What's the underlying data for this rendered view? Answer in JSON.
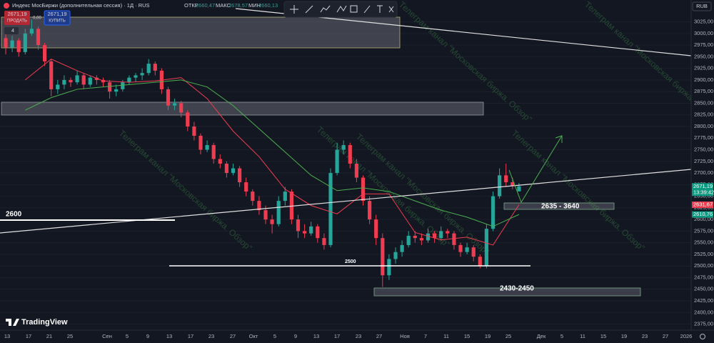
{
  "header": {
    "symbol": "Индекс МосБиржи (дополнительная сессия) · 1Д · RUS",
    "open_label": "ОТКР",
    "open": "2660,47",
    "high_label": "МАКС",
    "high": "2678,57",
    "low_label": "МИН",
    "low": "2660,13",
    "sell_price": "2671,19",
    "sell": "ПРОДАТЬ",
    "spread": "0,00",
    "buy_price": "2671,19",
    "buy": "КУПИТЬ",
    "layers": "4",
    "currency": "RUB",
    "logo": "TradingView"
  },
  "watermark": "Телеграм канал \"Московская биржа. Обзор\"",
  "annotations": {
    "level_2600": "2600",
    "level_2500": "2500",
    "zone_top": "2635 - 3640",
    "zone_bottom": "2430-2450"
  },
  "chart_data": {
    "type": "candlestick",
    "up_color": "#26a69a",
    "down_color": "#ef3c50",
    "grid": true,
    "ylim": [
      2362,
      3072
    ],
    "yticks": [
      {
        "value": 2375,
        "label": "2375,00"
      },
      {
        "value": 2400,
        "label": "2400,00"
      },
      {
        "value": 2425,
        "label": "2425,00"
      },
      {
        "value": 2450,
        "label": "2450,00"
      },
      {
        "value": 2475,
        "label": "2475,00"
      },
      {
        "value": 2500,
        "label": "2500,00"
      },
      {
        "value": 2525,
        "label": "2525,00"
      },
      {
        "value": 2550,
        "label": "2550,00"
      },
      {
        "value": 2575,
        "label": "2575,00"
      },
      {
        "value": 2600,
        "label": "2600,00"
      },
      {
        "value": 2625,
        "label": "2625,00"
      },
      {
        "value": 2650,
        "label": "2650,00"
      },
      {
        "value": 2675,
        "label": "2675,00"
      },
      {
        "value": 2700,
        "label": "2700,00"
      },
      {
        "value": 2725,
        "label": "2725,00"
      },
      {
        "value": 2750,
        "label": "2750,00"
      },
      {
        "value": 2775,
        "label": "2775,00"
      },
      {
        "value": 2800,
        "label": "2800,00"
      },
      {
        "value": 2825,
        "label": "2825,00"
      },
      {
        "value": 2850,
        "label": "2850,00"
      },
      {
        "value": 2875,
        "label": "2875,00"
      },
      {
        "value": 2900,
        "label": "2900,00"
      },
      {
        "value": 2925,
        "label": "2925,00"
      },
      {
        "value": 2950,
        "label": "2950,00"
      },
      {
        "value": 2975,
        "label": "2975,00"
      },
      {
        "value": 3000,
        "label": "3000,00"
      },
      {
        "value": 3025,
        "label": "3025,00"
      }
    ],
    "xlabels": [
      "13",
      "17",
      "21",
      "25",
      "Сен",
      "5",
      "9",
      "13",
      "17",
      "23",
      "27",
      "Окт",
      "5",
      "9",
      "13",
      "17",
      "23",
      "27",
      "Ноя",
      "7",
      "11",
      "15",
      "19",
      "25",
      "Дек",
      "5",
      "11",
      "15",
      "19",
      "23",
      "27",
      "2026"
    ],
    "candles": [
      [
        2990,
        3000,
        2955,
        2970
      ],
      [
        2970,
        2995,
        2960,
        2985
      ],
      [
        2985,
        2990,
        2950,
        2960
      ],
      [
        2960,
        3010,
        2955,
        3000
      ],
      [
        3000,
        3030,
        2995,
        3010
      ],
      [
        3010,
        3015,
        2965,
        2975
      ],
      [
        2975,
        2980,
        2930,
        2940
      ],
      [
        2940,
        2945,
        2865,
        2880
      ],
      [
        2880,
        2900,
        2870,
        2890
      ],
      [
        2890,
        2910,
        2880,
        2900
      ],
      [
        2900,
        2905,
        2885,
        2895
      ],
      [
        2895,
        2920,
        2890,
        2910
      ],
      [
        2910,
        2915,
        2880,
        2890
      ],
      [
        2890,
        2910,
        2885,
        2905
      ],
      [
        2905,
        2910,
        2890,
        2900
      ],
      [
        2900,
        2905,
        2885,
        2895
      ],
      [
        2895,
        2900,
        2860,
        2875
      ],
      [
        2875,
        2890,
        2865,
        2880
      ],
      [
        2880,
        2900,
        2875,
        2895
      ],
      [
        2895,
        2910,
        2890,
        2905
      ],
      [
        2905,
        2915,
        2895,
        2910
      ],
      [
        2910,
        2925,
        2900,
        2915
      ],
      [
        2915,
        2945,
        2910,
        2935
      ],
      [
        2935,
        2940,
        2910,
        2920
      ],
      [
        2920,
        2925,
        2870,
        2880
      ],
      [
        2880,
        2885,
        2835,
        2845
      ],
      [
        2845,
        2860,
        2835,
        2850
      ],
      [
        2850,
        2855,
        2820,
        2830
      ],
      [
        2830,
        2835,
        2790,
        2800
      ],
      [
        2800,
        2810,
        2770,
        2780
      ],
      [
        2780,
        2785,
        2740,
        2750
      ],
      [
        2750,
        2770,
        2745,
        2760
      ],
      [
        2760,
        2765,
        2720,
        2730
      ],
      [
        2730,
        2740,
        2710,
        2720
      ],
      [
        2720,
        2725,
        2690,
        2700
      ],
      [
        2700,
        2720,
        2695,
        2710
      ],
      [
        2710,
        2715,
        2670,
        2680
      ],
      [
        2680,
        2690,
        2650,
        2660
      ],
      [
        2660,
        2665,
        2630,
        2640
      ],
      [
        2640,
        2650,
        2610,
        2620
      ],
      [
        2620,
        2630,
        2590,
        2600
      ],
      [
        2600,
        2610,
        2570,
        2590
      ],
      [
        2590,
        2650,
        2585,
        2640
      ],
      [
        2640,
        2670,
        2630,
        2660
      ],
      [
        2660,
        2665,
        2590,
        2600
      ],
      [
        2600,
        2610,
        2560,
        2575
      ],
      [
        2575,
        2590,
        2560,
        2570
      ],
      [
        2570,
        2595,
        2565,
        2585
      ],
      [
        2585,
        2590,
        2550,
        2560
      ],
      [
        2560,
        2570,
        2535,
        2545
      ],
      [
        2545,
        2710,
        2540,
        2700
      ],
      [
        2700,
        2765,
        2695,
        2750
      ],
      [
        2750,
        2770,
        2740,
        2760
      ],
      [
        2760,
        2765,
        2710,
        2720
      ],
      [
        2720,
        2730,
        2680,
        2690
      ],
      [
        2690,
        2695,
        2630,
        2640
      ],
      [
        2640,
        2650,
        2590,
        2600
      ],
      [
        2600,
        2610,
        2545,
        2560
      ],
      [
        2560,
        2570,
        2455,
        2480
      ],
      [
        2480,
        2525,
        2470,
        2515
      ],
      [
        2515,
        2540,
        2505,
        2530
      ],
      [
        2530,
        2555,
        2520,
        2545
      ],
      [
        2545,
        2575,
        2540,
        2565
      ],
      [
        2565,
        2575,
        2550,
        2560
      ],
      [
        2560,
        2570,
        2545,
        2555
      ],
      [
        2555,
        2580,
        2550,
        2570
      ],
      [
        2570,
        2575,
        2550,
        2560
      ],
      [
        2560,
        2585,
        2555,
        2575
      ],
      [
        2575,
        2580,
        2560,
        2570
      ],
      [
        2570,
        2575,
        2535,
        2545
      ],
      [
        2545,
        2550,
        2520,
        2530
      ],
      [
        2530,
        2550,
        2525,
        2540
      ],
      [
        2540,
        2545,
        2510,
        2520
      ],
      [
        2520,
        2525,
        2495,
        2500
      ],
      [
        2500,
        2590,
        2495,
        2580
      ],
      [
        2580,
        2660,
        2575,
        2650
      ],
      [
        2650,
        2710,
        2645,
        2695
      ],
      [
        2695,
        2720,
        2670,
        2680
      ],
      [
        2680,
        2690,
        2665,
        2672
      ],
      [
        2660.47,
        2678.57,
        2660.13,
        2671.19
      ]
    ],
    "series": [
      {
        "color": "#ef3c50",
        "values": [
          2900,
          2945,
          2920,
          2898,
          2895,
          2898,
          2905,
          2860,
          2790,
          2735,
          2665,
          2630,
          2612,
          2655,
          2655,
          2572,
          2556,
          2562,
          2545,
          2631.67
        ]
      },
      {
        "color": "#4caf50",
        "values": [
          2835,
          2862,
          2880,
          2885,
          2890,
          2895,
          2900,
          2885,
          2845,
          2795,
          2745,
          2695,
          2662,
          2668,
          2660,
          2640,
          2620,
          2605,
          2585,
          2610.76
        ]
      }
    ],
    "price_tags": [
      {
        "value": 2671.19,
        "label": "2671,19",
        "color": "#089981",
        "time": "13:39:42"
      },
      {
        "value": 2631.67,
        "label": "2631,67",
        "color": "#ef3c50"
      },
      {
        "value": 2610.76,
        "label": "2610,76",
        "color": "#089981"
      }
    ]
  }
}
